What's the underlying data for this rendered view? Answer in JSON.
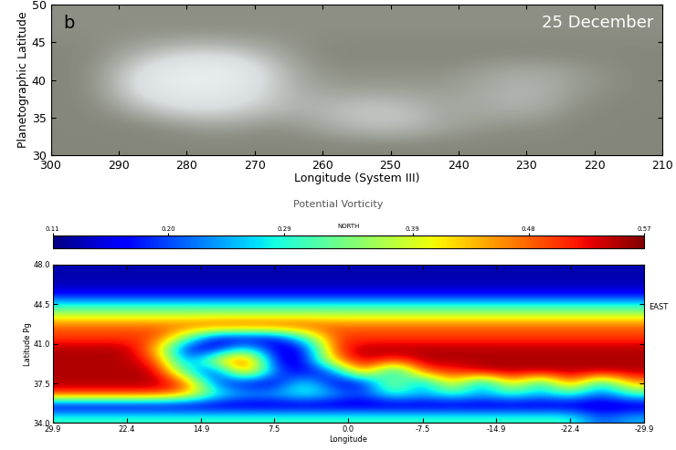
{
  "chart_data": [
    {
      "type": "image",
      "xlabel": "Longitude (System III)",
      "ylabel": "Planetographic Latitude",
      "annotations": [
        "b",
        "25 December"
      ],
      "xlim": [
        300,
        210
      ],
      "xticks": [
        300,
        290,
        280,
        270,
        260,
        250,
        240,
        230,
        220,
        210
      ],
      "ylim": [
        30,
        50
      ],
      "yticks": [
        30,
        35,
        40,
        45,
        50
      ],
      "brightness_range": [
        0,
        1
      ],
      "cells": [
        [
          0.3,
          0.3,
          0.3,
          0.3,
          0.3,
          0.3,
          0.3,
          0.3,
          0.3,
          0.3,
          0.3,
          0.3,
          0.3,
          0.3,
          0.3,
          0.3,
          0.3,
          0.3
        ],
        [
          0.3,
          0.3,
          0.3,
          0.35,
          0.4,
          0.4,
          0.35,
          0.4,
          0.5,
          0.55,
          0.55,
          0.45,
          0.4,
          0.35,
          0.35,
          0.3,
          0.3,
          0.3
        ],
        [
          0.3,
          0.35,
          0.5,
          0.65,
          0.7,
          0.65,
          0.55,
          0.5,
          0.55,
          0.6,
          0.55,
          0.45,
          0.45,
          0.5,
          0.45,
          0.35,
          0.3,
          0.3
        ],
        [
          0.3,
          0.4,
          0.7,
          0.85,
          0.85,
          0.8,
          0.6,
          0.45,
          0.4,
          0.4,
          0.4,
          0.4,
          0.45,
          0.5,
          0.5,
          0.4,
          0.35,
          0.3
        ],
        [
          0.3,
          0.4,
          0.65,
          0.85,
          0.9,
          0.85,
          0.6,
          0.4,
          0.35,
          0.35,
          0.35,
          0.35,
          0.4,
          0.45,
          0.45,
          0.4,
          0.35,
          0.3
        ],
        [
          0.3,
          0.35,
          0.45,
          0.55,
          0.6,
          0.55,
          0.45,
          0.35,
          0.3,
          0.3,
          0.3,
          0.3,
          0.3,
          0.3,
          0.3,
          0.3,
          0.3,
          0.3
        ],
        [
          0.35,
          0.35,
          0.35,
          0.35,
          0.35,
          0.35,
          0.35,
          0.35,
          0.35,
          0.35,
          0.35,
          0.35,
          0.35,
          0.35,
          0.35,
          0.35,
          0.35,
          0.35
        ],
        [
          0.35,
          0.35,
          0.35,
          0.35,
          0.35,
          0.35,
          0.35,
          0.35,
          0.35,
          0.35,
          0.35,
          0.35,
          0.35,
          0.35,
          0.35,
          0.35,
          0.35,
          0.35
        ]
      ]
    },
    {
      "type": "heatmap",
      "title": "Potential Vorticity",
      "xlabel": "Longitude",
      "ylabel": "Latitude Pg",
      "annotations": [
        "EAST"
      ],
      "colorbar_title": "NORTH",
      "colorbar_range": [
        0.11,
        0.57
      ],
      "colorbar_ticks": [
        0.11,
        {
          "value": 0.2,
          "label": "0.20"
        },
        0.29,
        0.39,
        0.48,
        0.57
      ],
      "xlim": [
        29.9,
        -29.9
      ],
      "xticks": [
        29.9,
        22.4,
        14.9,
        7.5,
        0.0,
        -7.5,
        -14.9,
        -22.4,
        -29.9
      ],
      "ylim": [
        34.0,
        48.0
      ],
      "yticks": [
        34.0,
        37.5,
        41.0,
        44.5,
        48.0
      ],
      "cells": [
        [
          0.3,
          0.3,
          0.3,
          0.3,
          0.3,
          0.3,
          0.3,
          0.3,
          0.3,
          0.3,
          0.3,
          0.3,
          0.3,
          0.3,
          0.3,
          0.3,
          0.3,
          0.3,
          0.2,
          0.25
        ],
        [
          0.13,
          0.13,
          0.13,
          0.13,
          0.13,
          0.13,
          0.13,
          0.13,
          0.13,
          0.13,
          0.13,
          0.13,
          0.13,
          0.13,
          0.13,
          0.13,
          0.13,
          0.13,
          0.13,
          0.13
        ],
        [
          0.5,
          0.5,
          0.5,
          0.5,
          0.45,
          0.3,
          0.25,
          0.25,
          0.3,
          0.25,
          0.2,
          0.3,
          0.25,
          0.3,
          0.25,
          0.3,
          0.25,
          0.3,
          0.2,
          0.3
        ],
        [
          0.55,
          0.55,
          0.55,
          0.55,
          0.5,
          0.2,
          0.15,
          0.15,
          0.3,
          0.15,
          0.15,
          0.4,
          0.2,
          0.45,
          0.2,
          0.45,
          0.25,
          0.5,
          0.25,
          0.45
        ],
        [
          0.55,
          0.55,
          0.55,
          0.55,
          0.3,
          0.15,
          0.5,
          0.2,
          0.15,
          0.2,
          0.5,
          0.2,
          0.5,
          0.5,
          0.55,
          0.55,
          0.55,
          0.55,
          0.55,
          0.55
        ],
        [
          0.55,
          0.55,
          0.55,
          0.5,
          0.2,
          0.4,
          0.55,
          0.15,
          0.15,
          0.45,
          0.55,
          0.5,
          0.55,
          0.55,
          0.55,
          0.55,
          0.55,
          0.55,
          0.55,
          0.55
        ],
        [
          0.55,
          0.55,
          0.55,
          0.45,
          0.15,
          0.15,
          0.3,
          0.15,
          0.15,
          0.5,
          0.55,
          0.55,
          0.55,
          0.55,
          0.55,
          0.55,
          0.55,
          0.55,
          0.55,
          0.55
        ],
        [
          0.5,
          0.5,
          0.5,
          0.5,
          0.35,
          0.15,
          0.15,
          0.15,
          0.3,
          0.5,
          0.5,
          0.5,
          0.5,
          0.5,
          0.5,
          0.5,
          0.5,
          0.5,
          0.5,
          0.5
        ],
        [
          0.48,
          0.48,
          0.48,
          0.48,
          0.48,
          0.5,
          0.5,
          0.5,
          0.5,
          0.48,
          0.48,
          0.48,
          0.48,
          0.48,
          0.48,
          0.48,
          0.48,
          0.48,
          0.48,
          0.48
        ],
        [
          0.38,
          0.38,
          0.38,
          0.38,
          0.38,
          0.38,
          0.38,
          0.38,
          0.38,
          0.38,
          0.38,
          0.38,
          0.38,
          0.38,
          0.38,
          0.38,
          0.38,
          0.38,
          0.38,
          0.38
        ],
        [
          0.27,
          0.27,
          0.27,
          0.27,
          0.27,
          0.27,
          0.27,
          0.27,
          0.27,
          0.27,
          0.27,
          0.27,
          0.27,
          0.27,
          0.27,
          0.27,
          0.27,
          0.27,
          0.27,
          0.27
        ],
        [
          0.15,
          0.15,
          0.15,
          0.15,
          0.15,
          0.15,
          0.15,
          0.15,
          0.15,
          0.15,
          0.15,
          0.15,
          0.15,
          0.15,
          0.15,
          0.15,
          0.15,
          0.15,
          0.15,
          0.15
        ],
        [
          0.13,
          0.13,
          0.13,
          0.13,
          0.13,
          0.13,
          0.13,
          0.13,
          0.13,
          0.13,
          0.13,
          0.13,
          0.13,
          0.13,
          0.13,
          0.13,
          0.13,
          0.13,
          0.13,
          0.13
        ],
        [
          0.13,
          0.13,
          0.13,
          0.13,
          0.13,
          0.13,
          0.13,
          0.13,
          0.13,
          0.13,
          0.13,
          0.13,
          0.13,
          0.13,
          0.13,
          0.13,
          0.13,
          0.13,
          0.13,
          0.13
        ]
      ]
    }
  ]
}
